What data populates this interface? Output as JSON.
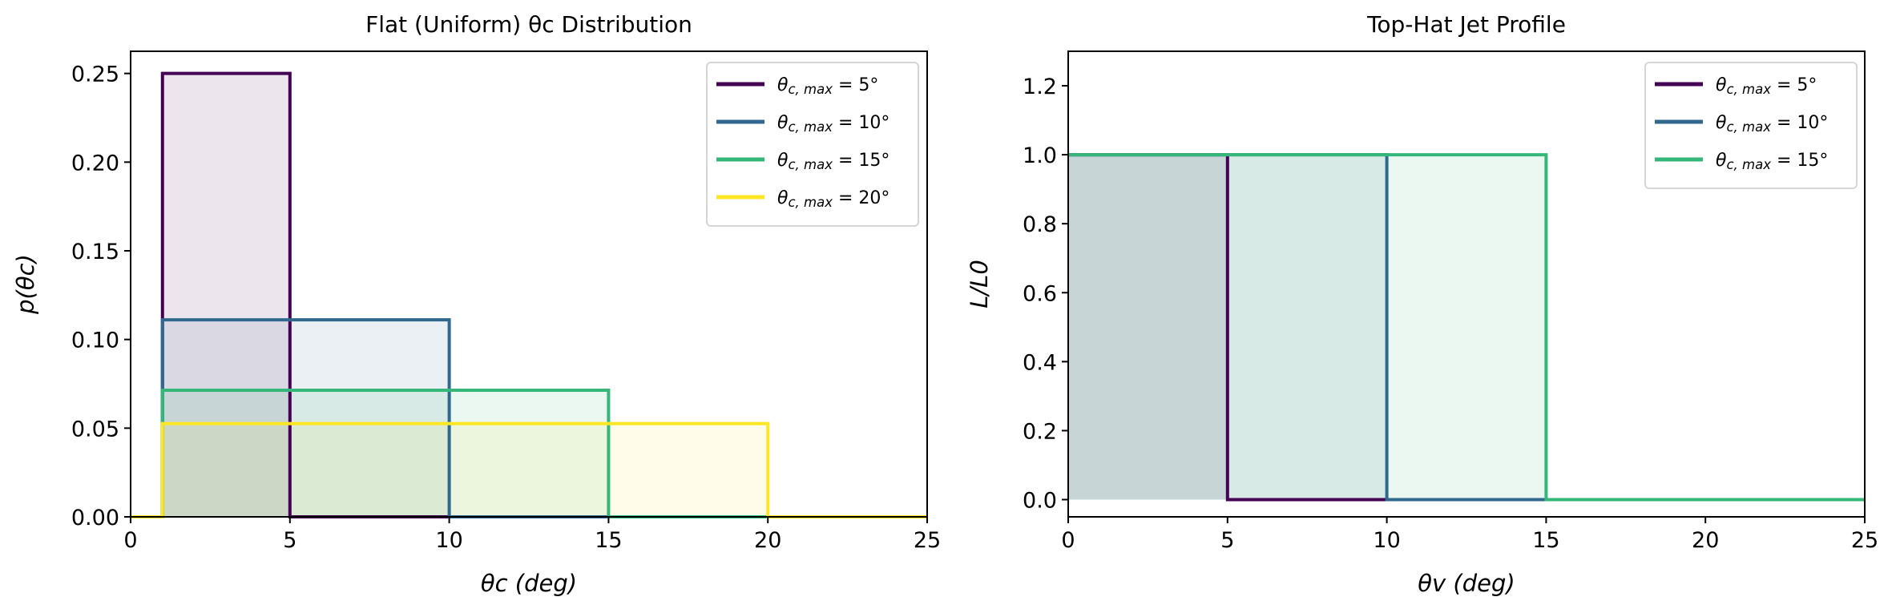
{
  "chart_data": [
    {
      "type": "line",
      "title": "Flat (Uniform) θc Distribution",
      "title_parts": [
        "Flat (Uniform) ",
        "θ",
        "c",
        " Distribution"
      ],
      "xlabel": "θc (deg)",
      "xlabel_parts": [
        "θ",
        "c",
        " (deg)"
      ],
      "ylabel": "p(θc)",
      "ylabel_parts": [
        "p(θ",
        "c",
        ")"
      ],
      "xlim": [
        0,
        25
      ],
      "ylim": [
        0,
        0.2625
      ],
      "xticks": [
        0,
        5,
        10,
        15,
        20,
        25
      ],
      "xtick_labels": [
        "0",
        "5",
        "10",
        "15",
        "20",
        "25"
      ],
      "yticks": [
        0,
        0.05,
        0.1,
        0.15,
        0.2,
        0.25
      ],
      "ytick_labels": [
        "0.00",
        "0.05",
        "0.10",
        "0.15",
        "0.20",
        "0.25"
      ],
      "grid": false,
      "legend_placement": "top-right",
      "fill_under": true,
      "series": [
        {
          "name": "θc,max = 5°",
          "label_parts": [
            "θ",
            "c, max",
            " = 5°"
          ],
          "color": "#440154",
          "x": [
            0,
            1,
            1,
            5,
            5,
            25
          ],
          "y": [
            0,
            0,
            0.25,
            0.25,
            0,
            0
          ]
        },
        {
          "name": "θc,max = 10°",
          "label_parts": [
            "θ",
            "c, max",
            " = 10°"
          ],
          "color": "#31688e",
          "x": [
            0,
            1,
            1,
            10,
            10,
            25
          ],
          "y": [
            0,
            0,
            0.1111,
            0.1111,
            0,
            0
          ]
        },
        {
          "name": "θc,max = 15°",
          "label_parts": [
            "θ",
            "c, max",
            " = 15°"
          ],
          "color": "#35b779",
          "x": [
            0,
            1,
            1,
            15,
            15,
            25
          ],
          "y": [
            0,
            0,
            0.0714,
            0.0714,
            0,
            0
          ]
        },
        {
          "name": "θc,max = 20°",
          "label_parts": [
            "θ",
            "c, max",
            " = 20°"
          ],
          "color": "#fde725",
          "x": [
            0,
            1,
            1,
            20,
            20,
            25
          ],
          "y": [
            0,
            0,
            0.0526,
            0.0526,
            0,
            0
          ]
        }
      ]
    },
    {
      "type": "line",
      "title": "Top-Hat Jet Profile",
      "title_parts": [
        "Top-Hat Jet Profile",
        "",
        ""
      ],
      "xlabel": "θv (deg)",
      "xlabel_parts": [
        "θ",
        "v",
        " (deg)"
      ],
      "ylabel": "L/L0",
      "ylabel_parts": [
        "L/L",
        "0",
        ""
      ],
      "xlim": [
        0,
        25
      ],
      "ylim": [
        -0.05,
        1.3
      ],
      "xticks": [
        0,
        5,
        10,
        15,
        20,
        25
      ],
      "xtick_labels": [
        "0",
        "5",
        "10",
        "15",
        "20",
        "25"
      ],
      "yticks": [
        0,
        0.2,
        0.4,
        0.6,
        0.8,
        1.0,
        1.2
      ],
      "ytick_labels": [
        "0.0",
        "0.2",
        "0.4",
        "0.6",
        "0.8",
        "1.0",
        "1.2"
      ],
      "grid": false,
      "legend_placement": "top-right",
      "fill_under": true,
      "series": [
        {
          "name": "θc,max = 5°",
          "label_parts": [
            "θ",
            "c, max",
            " = 5°"
          ],
          "color": "#440154",
          "x": [
            0,
            5,
            5,
            25
          ],
          "y": [
            1,
            1,
            0,
            0
          ]
        },
        {
          "name": "θc,max = 10°",
          "label_parts": [
            "θ",
            "c, max",
            " = 10°"
          ],
          "color": "#31688e",
          "x": [
            0,
            10,
            10,
            25
          ],
          "y": [
            1,
            1,
            0,
            0
          ]
        },
        {
          "name": "θc,max = 15°",
          "label_parts": [
            "θ",
            "c, max",
            " = 15°"
          ],
          "color": "#35b779",
          "x": [
            0,
            15,
            15,
            25
          ],
          "y": [
            1,
            1,
            0,
            0
          ]
        }
      ]
    }
  ]
}
